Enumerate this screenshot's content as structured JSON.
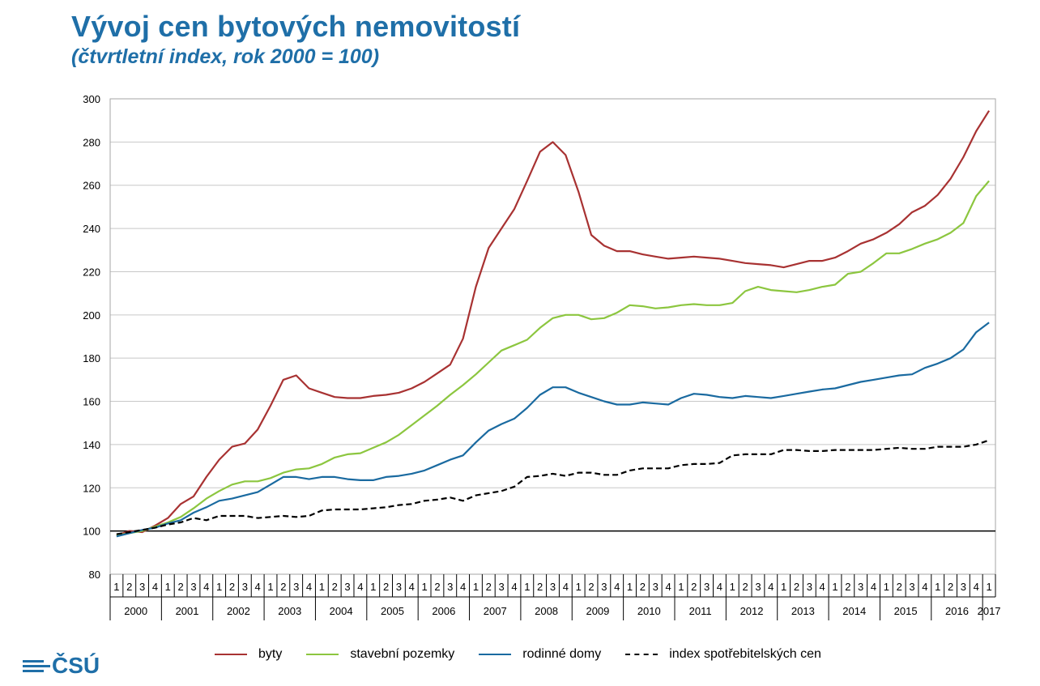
{
  "header": {
    "title": "Vývoj cen bytových nemovitostí",
    "subtitle": "(čtvrtletní index, rok 2000 = 100)"
  },
  "logo": {
    "text": "ČSÚ",
    "color": "#1f6fa8"
  },
  "chart_data": {
    "type": "line",
    "title": "Vývoj cen bytových nemovitostí",
    "subtitle": "(čtvrtletní index, rok 2000 = 100)",
    "xlabel": "",
    "ylabel": "",
    "ylim": [
      80,
      300
    ],
    "yticks": [
      80,
      100,
      120,
      140,
      160,
      180,
      200,
      220,
      240,
      260,
      280,
      300
    ],
    "grid": true,
    "legend_position": "bottom",
    "quarters": [
      "1",
      "2",
      "3",
      "4",
      "1",
      "2",
      "3",
      "4",
      "1",
      "2",
      "3",
      "4",
      "1",
      "2",
      "3",
      "4",
      "1",
      "2",
      "3",
      "4",
      "1",
      "2",
      "3",
      "4",
      "1",
      "2",
      "3",
      "4",
      "1",
      "2",
      "3",
      "4",
      "1",
      "2",
      "3",
      "4",
      "1",
      "2",
      "3",
      "4",
      "1",
      "2",
      "3",
      "4",
      "1",
      "2",
      "3",
      "4",
      "1",
      "2",
      "3",
      "4",
      "1",
      "2",
      "3",
      "4",
      "1",
      "2",
      "3",
      "4",
      "1",
      "2",
      "3",
      "4",
      "1",
      "2",
      "3",
      "4",
      "1"
    ],
    "years": [
      "2000",
      "2001",
      "2002",
      "2003",
      "2004",
      "2005",
      "2006",
      "2007",
      "2008",
      "2009",
      "2010",
      "2011",
      "2012",
      "2013",
      "2014",
      "2015",
      "2016",
      "2017"
    ],
    "series": [
      {
        "name": "byty",
        "color": "#a83232",
        "style": "solid",
        "values": [
          98,
          100,
          99.5,
          102.5,
          106,
          112.5,
          116,
          125,
          133,
          139,
          140.5,
          147,
          158,
          170,
          172,
          166,
          164,
          162,
          161.5,
          161.5,
          162.5,
          163,
          164,
          166,
          169,
          173,
          177,
          189,
          213,
          231,
          240,
          249,
          262,
          275.5,
          280,
          274,
          257,
          237,
          232,
          229.5,
          229.5,
          228,
          227,
          226,
          226.5,
          227,
          226.5,
          226,
          225,
          224,
          223.5,
          223,
          222,
          223.5,
          225,
          225,
          226.5,
          229.5,
          233,
          235,
          238,
          242,
          247.5,
          250.5,
          255.5,
          263,
          273,
          285,
          294.5
        ]
      },
      {
        "name": "stavební pozemky",
        "color": "#8cc63f",
        "style": "solid",
        "values": [
          98,
          99,
          100,
          102,
          104,
          106.5,
          110.5,
          115,
          118.5,
          121.5,
          123,
          123,
          124.5,
          127,
          128.5,
          129,
          131,
          134,
          135.5,
          136,
          138.5,
          141,
          144.5,
          149,
          153.5,
          158,
          163,
          167.5,
          172.5,
          178,
          183.5,
          186,
          188.5,
          194,
          198.5,
          200,
          200,
          198,
          198.5,
          201,
          204.5,
          204,
          203,
          203.5,
          204.5,
          205,
          204.5,
          204.5,
          205.5,
          211,
          213,
          211.5,
          211,
          210.5,
          211.5,
          213,
          214,
          219,
          220,
          224,
          228.5,
          228.5,
          230.5,
          233,
          235,
          238,
          242.5,
          255,
          262
        ]
      },
      {
        "name": "rodinné domy",
        "color": "#1a6aa0",
        "style": "solid",
        "values": [
          97.5,
          99,
          100.5,
          101.5,
          103.5,
          105,
          108.5,
          111,
          114,
          115,
          116.5,
          118,
          121.5,
          125,
          125,
          124,
          125,
          125,
          124,
          123.5,
          123.5,
          125,
          125.5,
          126.5,
          128,
          130.5,
          133,
          135,
          141,
          146.5,
          149.5,
          152,
          157,
          163,
          166.5,
          166.5,
          164,
          162,
          160,
          158.5,
          158.5,
          159.5,
          159,
          158.5,
          161.5,
          163.5,
          163,
          162,
          161.5,
          162.5,
          162,
          161.5,
          162.5,
          163.5,
          164.5,
          165.5,
          166,
          167.5,
          169,
          170,
          171,
          172,
          172.5,
          175.5,
          177.5,
          180,
          184,
          192,
          196.5
        ]
      },
      {
        "name": "index spotřebitelských cen",
        "color": "#000000",
        "style": "dashed",
        "values": [
          98.5,
          99.5,
          100.5,
          101.5,
          103,
          104,
          106,
          105,
          107,
          107,
          107,
          106,
          106.5,
          107,
          106.5,
          107,
          109.5,
          110,
          110,
          110,
          110.5,
          111,
          112,
          112.5,
          114,
          114.5,
          115.5,
          114,
          116.5,
          117.5,
          118.5,
          120.5,
          125,
          125.5,
          126.5,
          125.5,
          127,
          127,
          126,
          126,
          128,
          129,
          129,
          129,
          130.5,
          131,
          131,
          131.5,
          135,
          135.5,
          135.5,
          135.5,
          137.5,
          137.5,
          137,
          137,
          137.5,
          137.5,
          137.5,
          137.5,
          138,
          138.5,
          138,
          138,
          139,
          139,
          139,
          140,
          142
        ]
      }
    ]
  }
}
